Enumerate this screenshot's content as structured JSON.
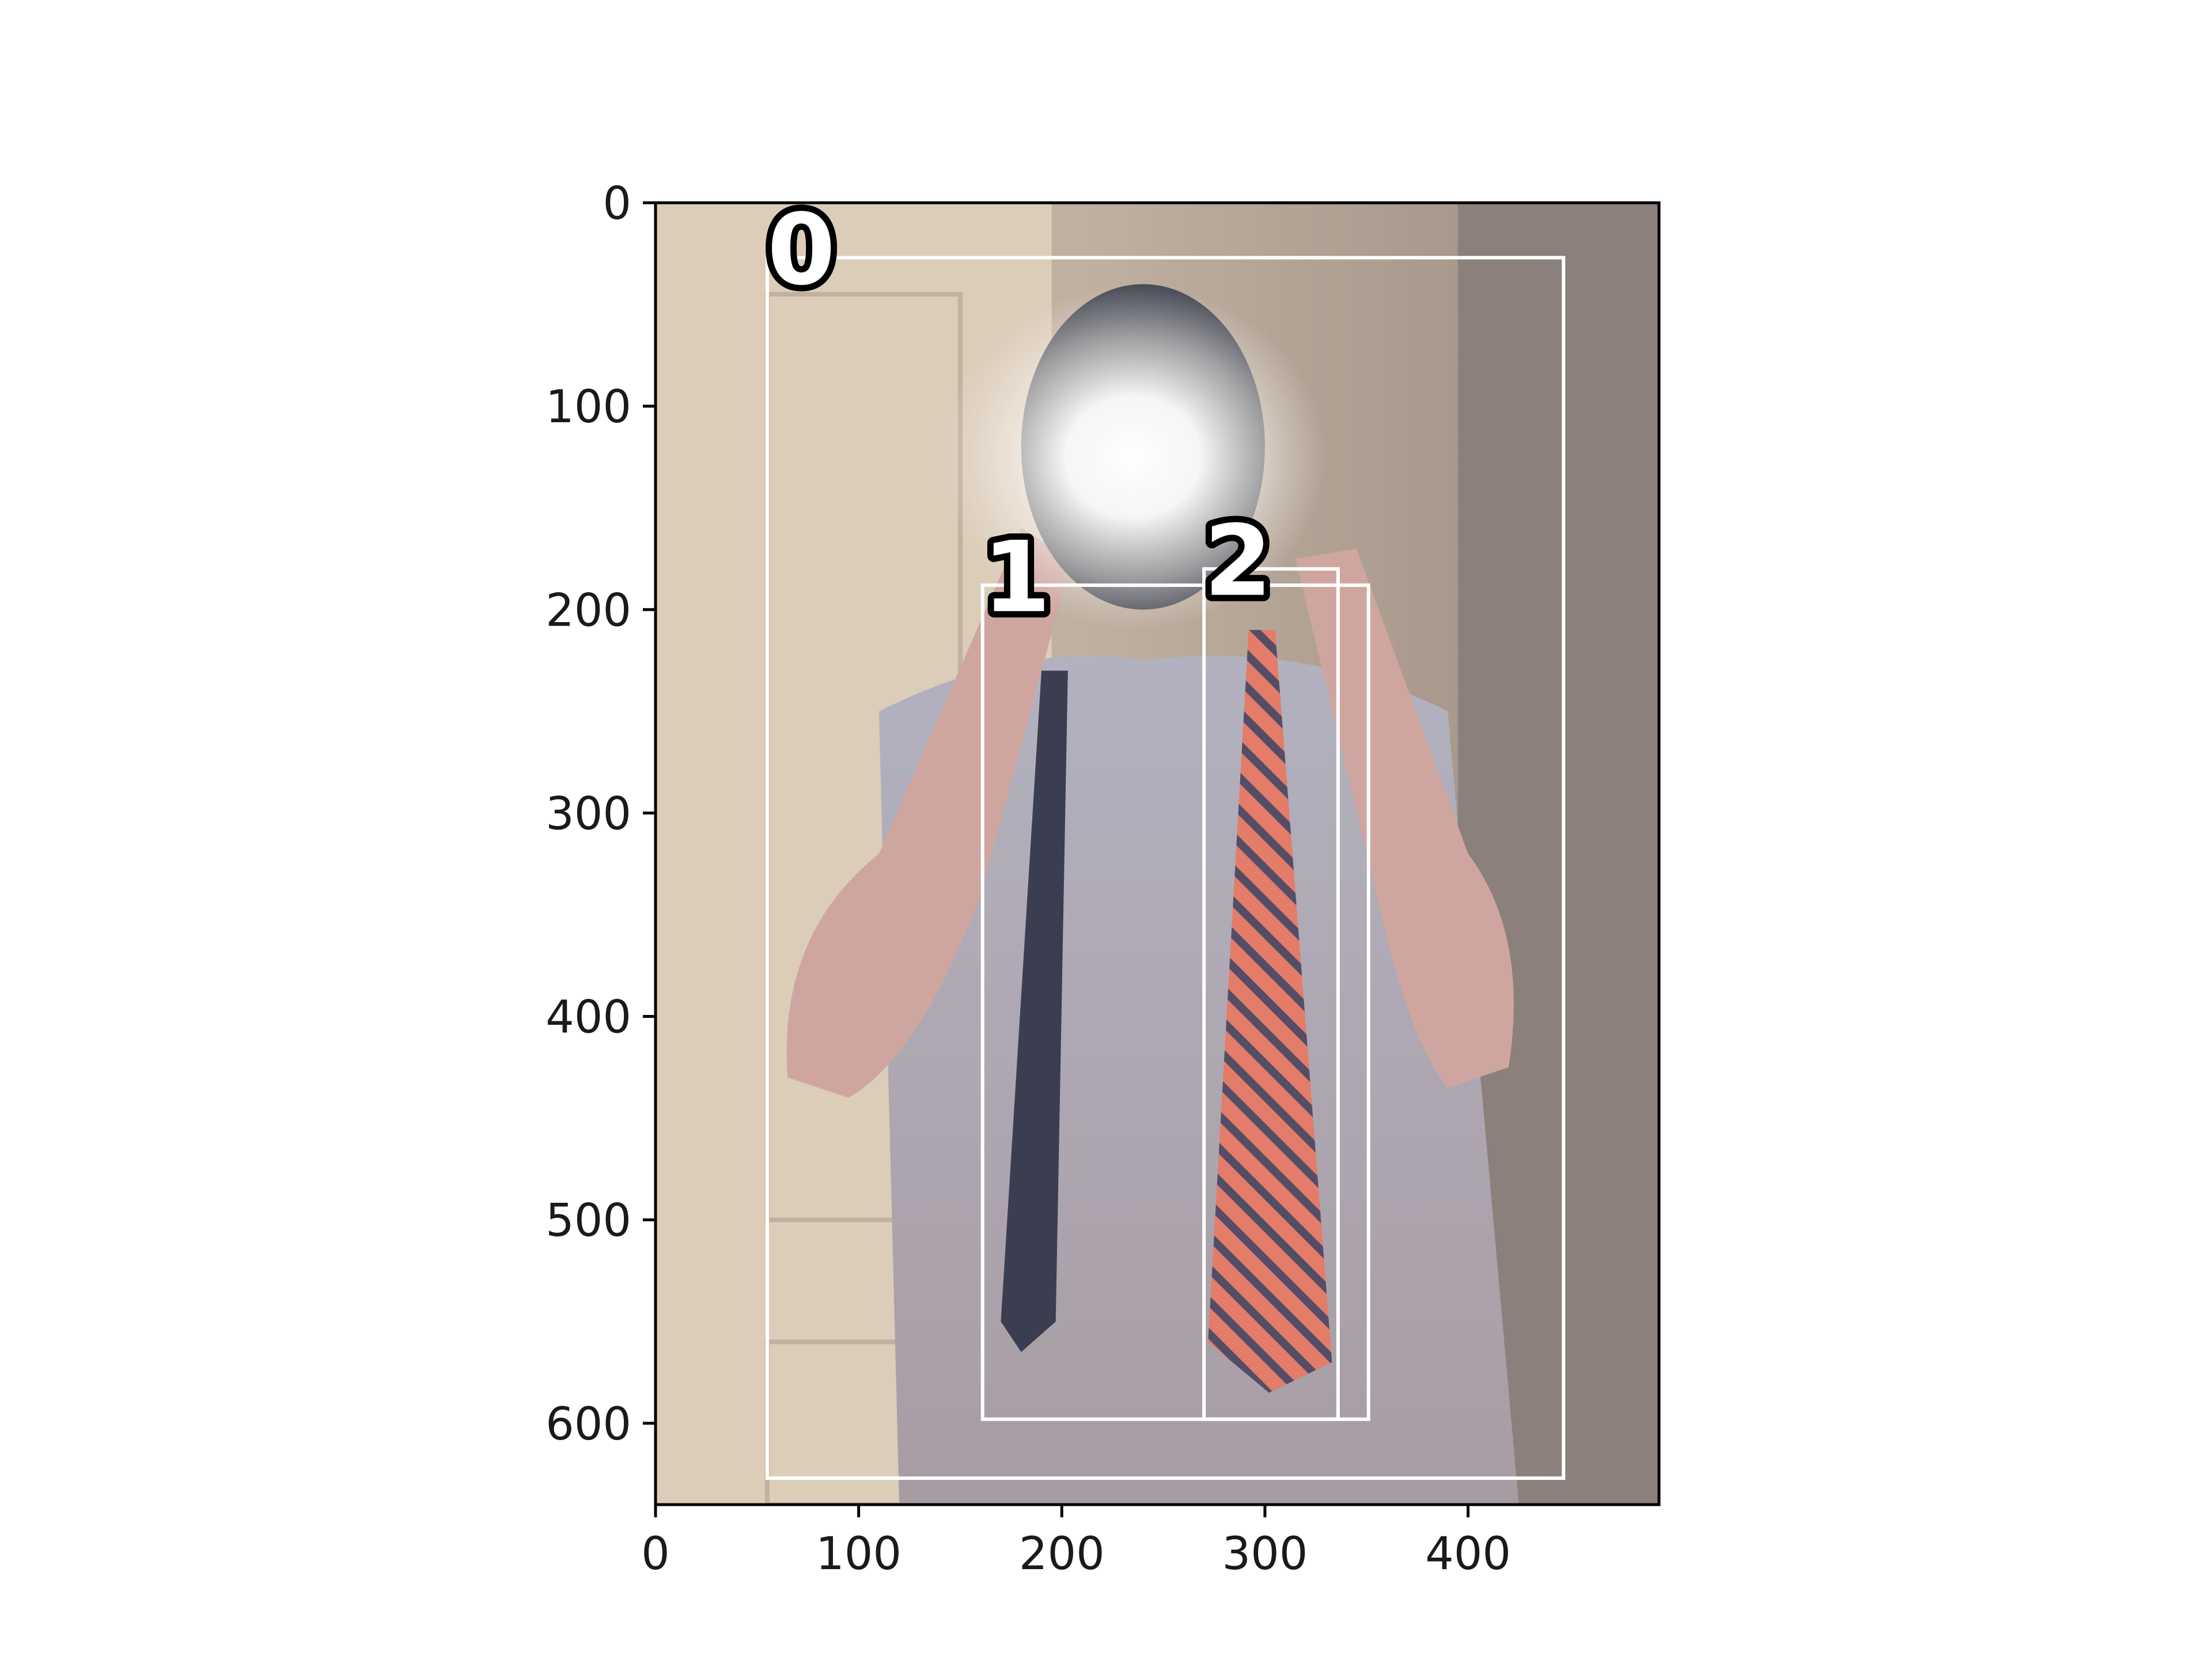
{
  "image": {
    "description_icon": "photo-mirror-selfie",
    "content": "Person in light blue button-down shirt taking a flash photo in a mirror, holding a dark navy tie and a red striped tie"
  },
  "axes": {
    "x_ticks": [
      "0",
      "100",
      "200",
      "300",
      "400"
    ],
    "y_ticks": [
      "0",
      "100",
      "200",
      "300",
      "400",
      "500",
      "600"
    ],
    "x_range": [
      0,
      494
    ],
    "y_range": [
      0,
      640
    ]
  },
  "boxes": [
    {
      "label": "0",
      "x0": 55,
      "y0": 27,
      "x1": 447,
      "y1": 627
    },
    {
      "label": "1",
      "x0": 161,
      "y0": 188,
      "x1": 351,
      "y1": 598
    },
    {
      "label": "2",
      "x0": 270,
      "y0": 180,
      "x1": 336,
      "y1": 598
    }
  ],
  "colors": {
    "box_outline": "#ffffff",
    "label_fill": "#ffffff",
    "label_stroke": "#000000",
    "frame": "#000000"
  }
}
